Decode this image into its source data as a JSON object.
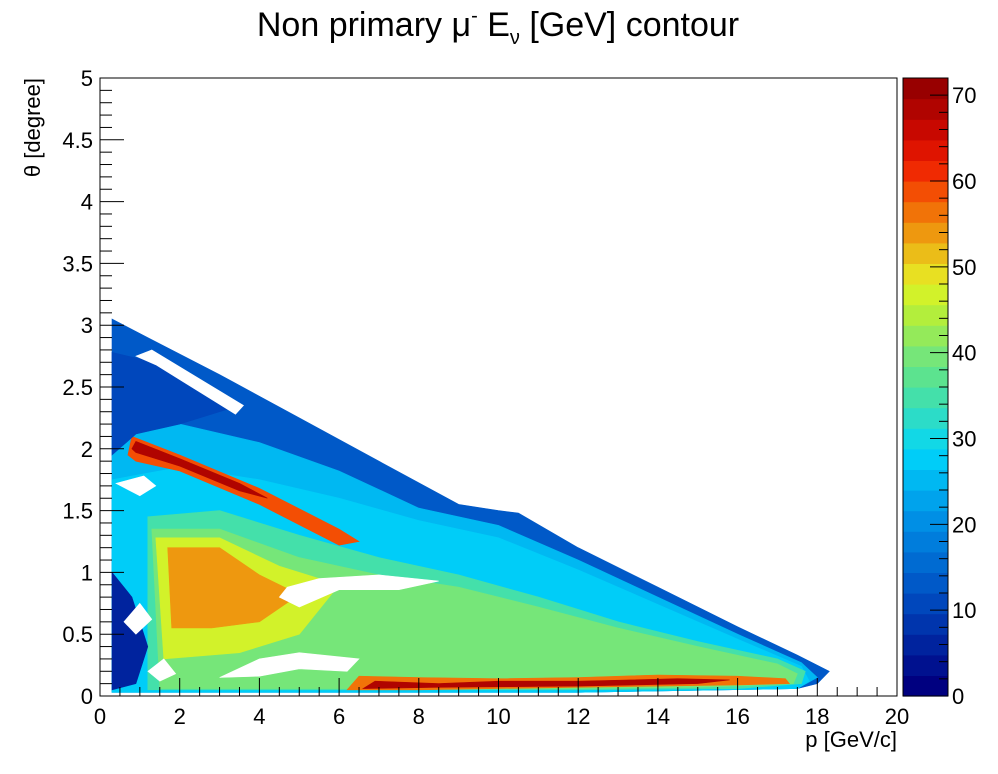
{
  "chart_data": {
    "type": "heatmap",
    "title": "Non primary μ",
    "title_sup": "-",
    "title_e": " E",
    "title_sub": "ν",
    "title_tail": " [GeV] contour",
    "xlabel": "p [GeV/c]",
    "ylabel": "θ [degree]",
    "xlim": [
      0,
      20
    ],
    "ylim": [
      0,
      5
    ],
    "zlim": [
      0,
      72
    ],
    "x_ticks": [
      "0",
      "2",
      "4",
      "6",
      "8",
      "10",
      "12",
      "14",
      "16",
      "18",
      "20"
    ],
    "y_ticks": [
      "0",
      "0.5",
      "1",
      "1.5",
      "2",
      "2.5",
      "3",
      "3.5",
      "4",
      "4.5",
      "5"
    ],
    "z_ticks": [
      "0",
      "10",
      "20",
      "30",
      "40",
      "50",
      "60",
      "70"
    ],
    "palette": [
      "#000080",
      "#00118f",
      "#00239e",
      "#0035ad",
      "#0047bc",
      "#0059c8",
      "#006bd2",
      "#007ddc",
      "#008fe5",
      "#00a3ec",
      "#00b8f2",
      "#00cdf8",
      "#12d8e6",
      "#2cdcc8",
      "#44e0aa",
      "#5ce38f",
      "#76e679",
      "#94ea5a",
      "#b3ee3c",
      "#d2f22a",
      "#e8e022",
      "#ebbd18",
      "#ee980f",
      "#f17308",
      "#f34e04",
      "#f02a02",
      "#df1400",
      "#c80800",
      "#b00400",
      "#980000"
    ],
    "regions": [
      {
        "label": "envelope",
        "z": 14,
        "poly": [
          [
            0.3,
            0.03
          ],
          [
            0.3,
            3.05
          ],
          [
            1.2,
            2.9
          ],
          [
            3,
            2.6
          ],
          [
            5,
            2.25
          ],
          [
            7,
            1.9
          ],
          [
            9,
            1.55
          ],
          [
            10,
            1.5
          ],
          [
            10.5,
            1.48
          ],
          [
            12,
            1.2
          ],
          [
            14,
            0.88
          ],
          [
            16,
            0.56
          ],
          [
            17.5,
            0.33
          ],
          [
            18.3,
            0.2
          ],
          [
            18,
            0.1
          ],
          [
            17.5,
            0.06
          ],
          [
            12,
            0.03
          ]
        ]
      },
      {
        "label": "band-1",
        "z": 24,
        "poly": [
          [
            0.3,
            0.03
          ],
          [
            0.3,
            2.15
          ],
          [
            2,
            2.2
          ],
          [
            4,
            2.05
          ],
          [
            6,
            1.82
          ],
          [
            8,
            1.52
          ],
          [
            10,
            1.38
          ],
          [
            12,
            1.1
          ],
          [
            14,
            0.8
          ],
          [
            16,
            0.5
          ],
          [
            17.6,
            0.27
          ],
          [
            18,
            0.15
          ],
          [
            17.5,
            0.06
          ],
          [
            12,
            0.03
          ]
        ]
      },
      {
        "label": "band-2",
        "z": 28,
        "poly": [
          [
            0.3,
            0.03
          ],
          [
            0.3,
            1.75
          ],
          [
            2,
            1.85
          ],
          [
            4,
            1.75
          ],
          [
            6,
            1.6
          ],
          [
            8,
            1.42
          ],
          [
            10,
            1.28
          ],
          [
            12,
            1.02
          ],
          [
            14,
            0.74
          ],
          [
            16,
            0.46
          ],
          [
            17.6,
            0.24
          ],
          [
            17.8,
            0.12
          ],
          [
            17.5,
            0.06
          ],
          [
            12,
            0.03
          ]
        ]
      },
      {
        "label": "band-3",
        "z": 34,
        "poly": [
          [
            1.2,
            0.05
          ],
          [
            1.2,
            1.45
          ],
          [
            3,
            1.5
          ],
          [
            5,
            1.3
          ],
          [
            7,
            1.12
          ],
          [
            9,
            0.98
          ],
          [
            11,
            0.8
          ],
          [
            13,
            0.6
          ],
          [
            15,
            0.44
          ],
          [
            17,
            0.3
          ],
          [
            17.7,
            0.2
          ],
          [
            17.6,
            0.1
          ],
          [
            16,
            0.06
          ],
          [
            12,
            0.05
          ]
        ]
      },
      {
        "label": "band-4",
        "z": 40,
        "poly": [
          [
            1.5,
            0.06
          ],
          [
            1.3,
            1.35
          ],
          [
            3,
            1.35
          ],
          [
            5,
            1.12
          ],
          [
            7,
            0.98
          ],
          [
            9,
            0.88
          ],
          [
            11,
            0.72
          ],
          [
            13,
            0.55
          ],
          [
            15,
            0.4
          ],
          [
            17,
            0.26
          ],
          [
            17.5,
            0.18
          ],
          [
            17.4,
            0.1
          ],
          [
            15,
            0.07
          ],
          [
            12,
            0.06
          ]
        ]
      },
      {
        "label": "band-5",
        "z": 46,
        "poly": [
          [
            1.6,
            0.3
          ],
          [
            1.4,
            1.28
          ],
          [
            3,
            1.28
          ],
          [
            4.5,
            1.05
          ],
          [
            6,
            0.9
          ],
          [
            5,
            0.5
          ],
          [
            3.5,
            0.35
          ]
        ]
      },
      {
        "label": "band-6",
        "z": 54,
        "poly": [
          [
            1.8,
            0.55
          ],
          [
            1.7,
            1.2
          ],
          [
            3,
            1.2
          ],
          [
            4,
            0.98
          ],
          [
            5,
            0.82
          ],
          [
            4,
            0.6
          ],
          [
            2.8,
            0.55
          ]
        ]
      },
      {
        "label": "ridge-upper",
        "z": 58,
        "poly": [
          [
            0.7,
            1.95
          ],
          [
            0.8,
            2.1
          ],
          [
            2,
            1.95
          ],
          [
            4,
            1.68
          ],
          [
            6,
            1.35
          ],
          [
            6.5,
            1.25
          ],
          [
            6,
            1.22
          ],
          [
            4,
            1.55
          ],
          [
            2,
            1.82
          ],
          [
            0.9,
            1.9
          ]
        ]
      },
      {
        "label": "ridge-upper-core",
        "z": 68,
        "poly": [
          [
            0.8,
            2.0
          ],
          [
            0.9,
            2.06
          ],
          [
            2,
            1.92
          ],
          [
            3.5,
            1.72
          ],
          [
            4.2,
            1.6
          ],
          [
            3.5,
            1.66
          ],
          [
            2,
            1.86
          ],
          [
            0.9,
            1.97
          ]
        ]
      },
      {
        "label": "ridge-bottom",
        "z": 56,
        "poly": [
          [
            6.2,
            0.05
          ],
          [
            6.5,
            0.16
          ],
          [
            8,
            0.15
          ],
          [
            10,
            0.14
          ],
          [
            12,
            0.15
          ],
          [
            14,
            0.17
          ],
          [
            16,
            0.16
          ],
          [
            17.2,
            0.14
          ],
          [
            17.3,
            0.1
          ],
          [
            16,
            0.09
          ],
          [
            12,
            0.07
          ],
          [
            8,
            0.05
          ]
        ]
      },
      {
        "label": "ridge-bottom-core",
        "z": 68,
        "poly": [
          [
            6.6,
            0.06
          ],
          [
            6.9,
            0.12
          ],
          [
            8.5,
            0.1
          ],
          [
            10,
            0.12
          ],
          [
            12,
            0.12
          ],
          [
            14.5,
            0.14
          ],
          [
            15.8,
            0.13
          ],
          [
            15,
            0.1
          ],
          [
            12,
            0.08
          ],
          [
            8.5,
            0.07
          ]
        ]
      },
      {
        "label": "low-lobe",
        "z": 10,
        "poly": [
          [
            0.3,
            1.95
          ],
          [
            0.3,
            2.78
          ],
          [
            1.1,
            2.72
          ],
          [
            2.4,
            2.55
          ],
          [
            3.5,
            2.35
          ],
          [
            2,
            2.2
          ],
          [
            0.9,
            2.12
          ]
        ]
      },
      {
        "label": "edge-lobe",
        "z": 6,
        "poly": [
          [
            0.3,
            0.05
          ],
          [
            0.3,
            1.0
          ],
          [
            0.8,
            0.8
          ],
          [
            1.2,
            0.4
          ],
          [
            0.9,
            0.1
          ]
        ]
      }
    ],
    "holes": [
      {
        "label": "gap-upper",
        "poly": [
          [
            0.9,
            2.75
          ],
          [
            1.3,
            2.8
          ],
          [
            3.6,
            2.35
          ],
          [
            3.4,
            2.28
          ],
          [
            1.4,
            2.68
          ]
        ]
      },
      {
        "label": "gap-middle",
        "poly": [
          [
            0.4,
            1.72
          ],
          [
            1.1,
            1.78
          ],
          [
            1.4,
            1.7
          ],
          [
            1.0,
            1.62
          ]
        ]
      },
      {
        "label": "gap-lower-arc",
        "poly": [
          [
            4.7,
            0.88
          ],
          [
            5.5,
            0.95
          ],
          [
            7,
            0.98
          ],
          [
            8.5,
            0.93
          ],
          [
            7.5,
            0.86
          ],
          [
            6,
            0.86
          ],
          [
            5,
            0.72
          ],
          [
            4.5,
            0.8
          ]
        ]
      },
      {
        "label": "gap-bottom-left",
        "poly": [
          [
            3.0,
            0.15
          ],
          [
            4,
            0.3
          ],
          [
            5,
            0.35
          ],
          [
            6.5,
            0.3
          ],
          [
            6.2,
            0.2
          ],
          [
            5,
            0.22
          ],
          [
            4,
            0.16
          ]
        ]
      },
      {
        "label": "gap-speck-1",
        "poly": [
          [
            1.2,
            0.2
          ],
          [
            1.6,
            0.3
          ],
          [
            1.9,
            0.18
          ],
          [
            1.5,
            0.12
          ]
        ]
      },
      {
        "label": "gap-speck-2",
        "poly": [
          [
            0.6,
            0.6
          ],
          [
            1.0,
            0.75
          ],
          [
            1.3,
            0.62
          ],
          [
            0.9,
            0.5
          ]
        ]
      }
    ]
  }
}
